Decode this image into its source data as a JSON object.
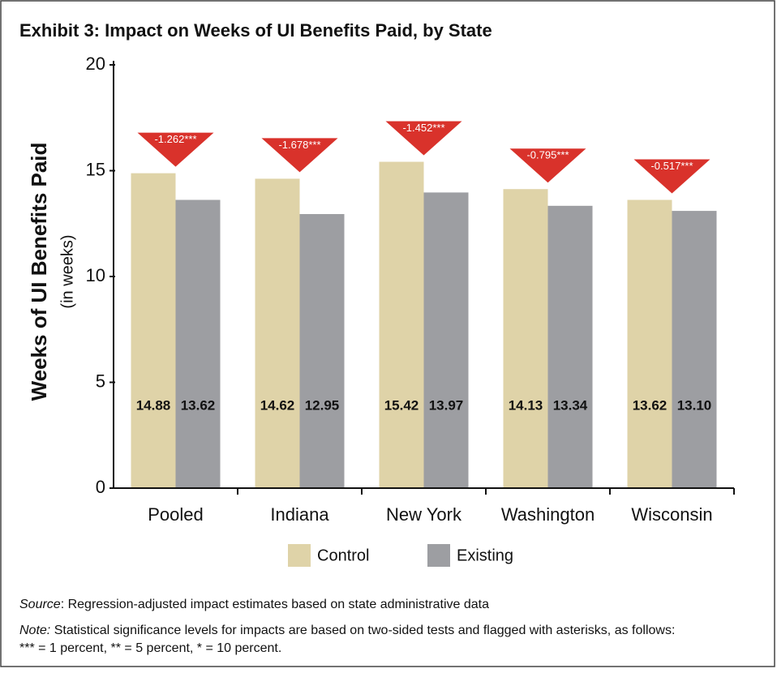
{
  "chart_data": {
    "type": "bar",
    "title": "Exhibit 3: Impact on Weeks of UI Benefits Paid, by State",
    "y_label": "Weeks of UI Benefits Paid",
    "y_sublabel": "(in weeks)",
    "categories": [
      "Pooled",
      "Indiana",
      "New York",
      "Washington",
      "Wisconsin"
    ],
    "series": [
      {
        "name": "Control",
        "color": "#dfd3a8",
        "values": [
          14.88,
          14.62,
          15.42,
          14.13,
          13.62
        ],
        "value_labels": [
          "14.88",
          "14.62",
          "15.42",
          "14.13",
          "13.62"
        ]
      },
      {
        "name": "Existing",
        "color": "#9d9ea2",
        "values": [
          13.62,
          12.95,
          13.97,
          13.34,
          13.1
        ],
        "value_labels": [
          "13.62",
          "12.95",
          "13.97",
          "13.34",
          "13.10"
        ]
      }
    ],
    "annotations": [
      "-1.262***",
      "-1.678***",
      "-1.452***",
      "-0.795***",
      "-0.517***"
    ],
    "annotation_color": "#d9322b",
    "ylim": [
      0,
      20
    ],
    "yticks": [
      0,
      5,
      10,
      15,
      20
    ],
    "grid": false,
    "legend": "bottom"
  },
  "source": {
    "label": "Source",
    "text": ": Regression-adjusted impact estimates based on state administrative data"
  },
  "note": {
    "label": "Note:",
    "lines": [
      " Statistical significance levels for impacts are based on two-sided tests and flagged with asterisks, as follows:",
      "*** = 1 percent, ** = 5 percent, * = 10 percent."
    ]
  }
}
